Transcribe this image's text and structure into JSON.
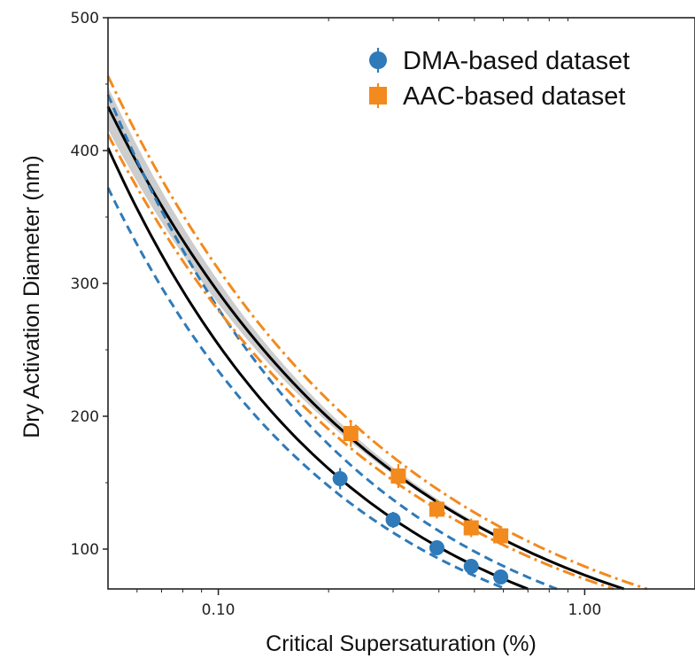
{
  "chart_data": {
    "type": "scatter",
    "title": "",
    "xlabel": "Critical Supersaturation (%)",
    "ylabel": "Dry Activation Diameter (nm)",
    "xscale": "log",
    "xlim": [
      0.05,
      2.0
    ],
    "ylim": [
      70,
      500
    ],
    "x_ticks": [
      0.1,
      1.0
    ],
    "x_tick_labels": [
      "0.10",
      "1.00"
    ],
    "y_ticks": [
      100,
      200,
      300,
      400,
      500
    ],
    "y_tick_labels": [
      "100",
      "200",
      "300",
      "400",
      "500"
    ],
    "grid": false,
    "legend_position": "top-right",
    "series": [
      {
        "name": "DMA-based dataset",
        "marker": "circle",
        "color": "#2f7ab8",
        "x": [
          0.215,
          0.3,
          0.395,
          0.49,
          0.59
        ],
        "y": [
          153,
          122,
          101,
          87,
          79
        ],
        "yerr": [
          8,
          6,
          5,
          4,
          4
        ]
      },
      {
        "name": "AAC-based dataset",
        "marker": "square",
        "color": "#f28a1e",
        "x": [
          0.23,
          0.31,
          0.395,
          0.49,
          0.59
        ],
        "y": [
          187,
          155,
          130,
          116,
          110
        ],
        "yerr": [
          10,
          9,
          7,
          7,
          7
        ]
      }
    ],
    "fit_curves": [
      {
        "style": "solid",
        "color": "#000000",
        "x": [
          0.05,
          0.7
        ],
        "y": [
          402,
          70
        ]
      },
      {
        "style": "solid",
        "color": "#000000",
        "x": [
          0.05,
          1.28
        ],
        "y": [
          433,
          70
        ]
      },
      {
        "style": "dashed",
        "color": "#2f7ab8",
        "x": [
          0.05,
          0.61
        ],
        "y": [
          372,
          70
        ]
      },
      {
        "style": "dashed",
        "color": "#2f7ab8",
        "x": [
          0.05,
          0.84
        ],
        "y": [
          442,
          70
        ]
      },
      {
        "style": "dashdot",
        "color": "#f28a1e",
        "x": [
          0.05,
          1.2
        ],
        "y": [
          412,
          70
        ]
      },
      {
        "style": "dashdot",
        "color": "#f28a1e",
        "x": [
          0.05,
          1.48
        ],
        "y": [
          456,
          70
        ]
      }
    ],
    "shaded_band": {
      "color": "#c8c8c8",
      "x": [
        0.05,
        1.3
      ],
      "lower_y": [
        416,
        70
      ],
      "upper_y": [
        448,
        70
      ]
    }
  }
}
